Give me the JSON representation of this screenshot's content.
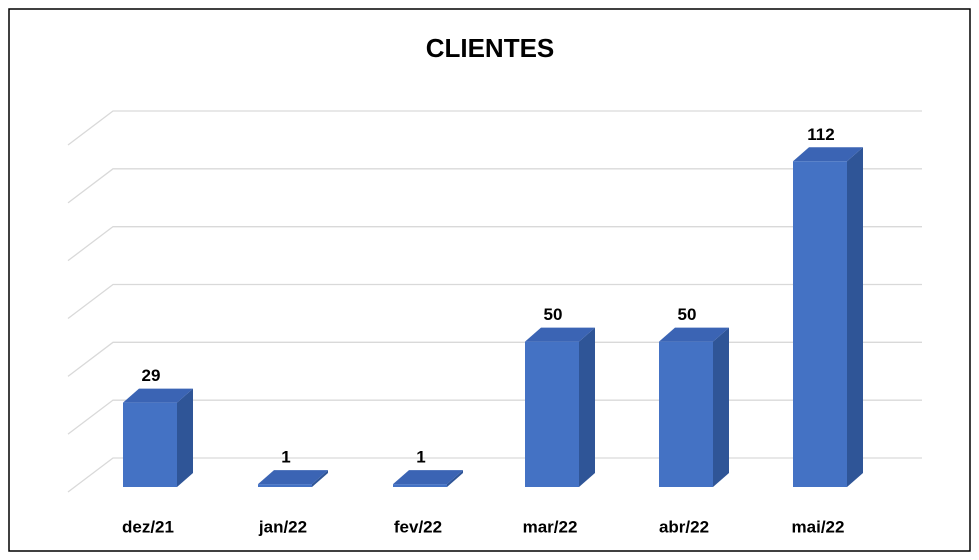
{
  "chart_data": {
    "type": "bar3d",
    "title": "CLIENTES",
    "categories": [
      "dez/21",
      "jan/22",
      "fev/22",
      "mar/22",
      "abr/22",
      "mai/22"
    ],
    "values": [
      29,
      1,
      1,
      50,
      50,
      112
    ],
    "color": "#4472c4",
    "ylim": [
      0,
      120
    ],
    "yticks": [
      0,
      20,
      40,
      60,
      80,
      100,
      120
    ],
    "grid": true
  }
}
